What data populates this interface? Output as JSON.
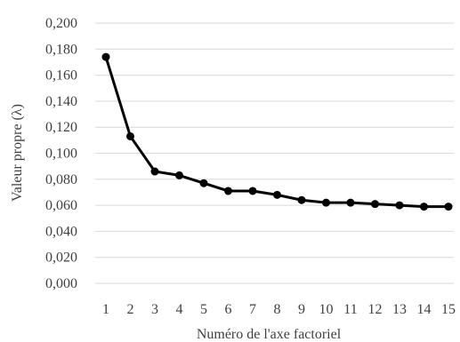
{
  "chart_data": {
    "type": "line",
    "title": "",
    "xlabel": "Numéro de l'axe factoriel",
    "ylabel": "Valeur propre (λ)",
    "x": [
      1,
      2,
      3,
      4,
      5,
      6,
      7,
      8,
      9,
      10,
      11,
      12,
      13,
      14,
      15
    ],
    "x_tick_labels": [
      "1",
      "2",
      "3",
      "4",
      "5",
      "6",
      "7",
      "8",
      "9",
      "10",
      "11",
      "12",
      "13",
      "14",
      "15"
    ],
    "series": [
      {
        "values": [
          0.174,
          0.113,
          0.086,
          0.083,
          0.077,
          0.071,
          0.071,
          0.068,
          0.064,
          0.062,
          0.062,
          0.061,
          0.06,
          0.059,
          0.059
        ]
      }
    ],
    "ylim": [
      0,
      0.2
    ],
    "y_ticks": [
      0,
      0.02,
      0.04,
      0.06,
      0.08,
      0.1,
      0.12,
      0.14,
      0.16,
      0.18,
      0.2
    ],
    "y_tick_labels": [
      "0,000",
      "0,020",
      "0,040",
      "0,060",
      "0,080",
      "0,100",
      "0,120",
      "0,140",
      "0,160",
      "0,180",
      "0,200"
    ],
    "grid": "horizontal",
    "legend": "none",
    "colors": {
      "line": "#000000",
      "grid": "#d9d9d9",
      "text": "#404040"
    }
  }
}
